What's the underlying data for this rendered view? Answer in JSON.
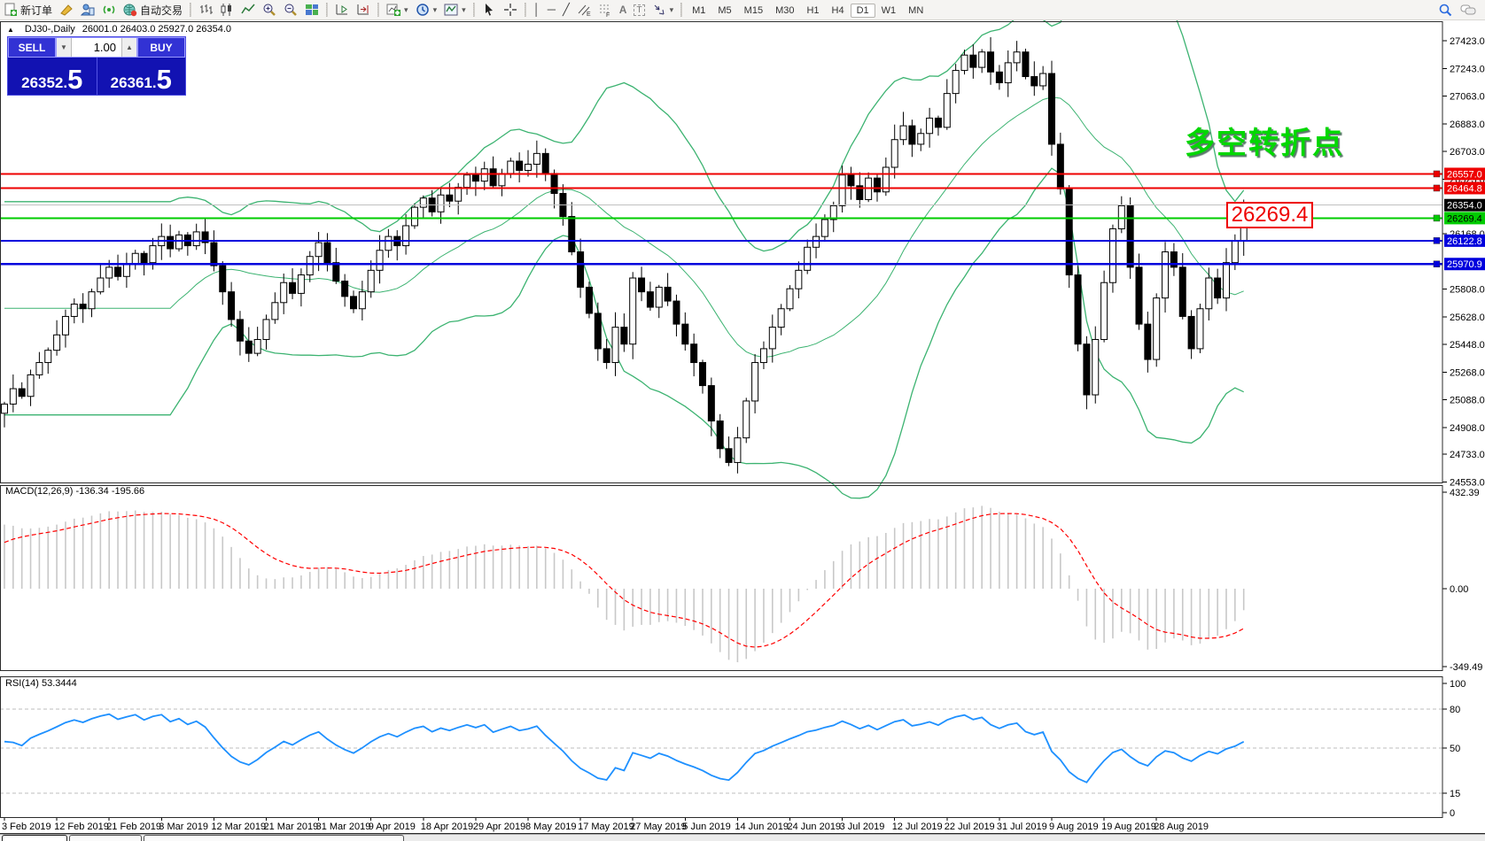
{
  "toolbar": {
    "new_order_label": "新订单",
    "autotrade_label": "自动交易",
    "timeframes": [
      "M1",
      "M5",
      "M15",
      "M30",
      "H1",
      "H4",
      "D1",
      "W1",
      "MN"
    ],
    "active_timeframe": "D1"
  },
  "chart_header": {
    "symbol_period": "DJ30-,Daily",
    "ohlc": "26001.0 26403.0 25927.0 26354.0"
  },
  "trade_panel": {
    "sell_label": "SELL",
    "buy_label": "BUY",
    "volume": "1.00",
    "sell_price_int": "26352",
    "sell_price_pip": "5",
    "buy_price_int": "26361",
    "buy_price_pip": "5"
  },
  "annotation": {
    "text": "多空转折点",
    "color": "#00d800"
  },
  "price_callout": {
    "text": "26269.4",
    "color": "#ee0000"
  },
  "main_pane": {
    "y_ticks": [
      "27423.0",
      "27243.0",
      "27063.0",
      "26883.0",
      "26703.0",
      "26523.0",
      "26168.0",
      "25808.0",
      "25628.0",
      "25448.0",
      "25268.0",
      "25088.0",
      "24908.0",
      "24733.0",
      "24553.0"
    ],
    "current_price": {
      "value": "26354.0",
      "line_color": "#c0c0c0",
      "label_bg": "#000000",
      "label_text": "#ffffff"
    },
    "levels": [
      {
        "value": "26557.0",
        "color": "#ee0000",
        "text_color": "#ffffff"
      },
      {
        "value": "26464.8",
        "color": "#ee0000",
        "text_color": "#ffffff"
      },
      {
        "value": "26269.4",
        "color": "#00cc00",
        "text_color": "#000000"
      },
      {
        "value": "26122.8",
        "color": "#0000dd",
        "text_color": "#ffffff"
      },
      {
        "value": "25970.9",
        "color": "#0000dd",
        "text_color": "#ffffff"
      }
    ]
  },
  "macd_pane": {
    "label": "MACD(12,26,9) -136.34 -195.66",
    "y_ticks": [
      "432.39",
      "0.00",
      "-349.49"
    ],
    "histogram_color": "#c8c8c8",
    "signal_color": "#ff0000"
  },
  "rsi_pane": {
    "label": "RSI(14) 53.3444",
    "y_ticks": [
      "100",
      "80",
      "50",
      "15",
      "0"
    ],
    "level_lines": [
      80,
      50,
      15
    ],
    "line_color": "#1e90ff"
  },
  "x_axis": {
    "labels": [
      "3 Feb 2019",
      "12 Feb 2019",
      "21 Feb 2019",
      "3 Mar 2019",
      "12 Mar 2019",
      "21 Mar 2019",
      "31 Mar 2019",
      "9 Apr 2019",
      "18 Apr 2019",
      "29 Apr 2019",
      "8 May 2019",
      "17 May 2019",
      "27 May 2019",
      "5 Jun 2019",
      "14 Jun 2019",
      "24 Jun 2019",
      "3 Jul 2019",
      "12 Jul 2019",
      "22 Jul 2019",
      "31 Jul 2019",
      "9 Aug 2019",
      "19 Aug 2019",
      "28 Aug 2019"
    ]
  },
  "chart_data": {
    "type": "candlestick",
    "symbol": "DJ30-,Daily",
    "visible_ohlc": {
      "open": 26001.0,
      "high": 26403.0,
      "low": 25927.0,
      "close": 26354.0
    },
    "y_range": [
      24553.0,
      27423.0
    ],
    "closes": [
      25060,
      25160,
      25110,
      25250,
      25330,
      25410,
      25510,
      25630,
      25710,
      25680,
      25790,
      25880,
      25950,
      25890,
      25970,
      26040,
      25980,
      26090,
      26150,
      26070,
      26160,
      26090,
      26180,
      26110,
      25960,
      25790,
      25610,
      25470,
      25390,
      25480,
      25610,
      25720,
      25850,
      25780,
      25900,
      26020,
      26110,
      25980,
      25860,
      25760,
      25680,
      25790,
      25930,
      26060,
      26150,
      26090,
      26220,
      26340,
      26400,
      26310,
      26420,
      26380,
      26470,
      26550,
      26510,
      26590,
      26480,
      26560,
      26640,
      26580,
      26620,
      26690,
      26560,
      26430,
      26280,
      26050,
      25820,
      25650,
      25420,
      25330,
      25560,
      25450,
      25880,
      25790,
      25690,
      25820,
      25730,
      25580,
      25450,
      25330,
      25180,
      24950,
      24770,
      24680,
      24840,
      25080,
      25330,
      25420,
      25560,
      25680,
      25810,
      25930,
      26080,
      26150,
      26260,
      26350,
      26550,
      26480,
      26390,
      26530,
      26440,
      26600,
      26780,
      26870,
      26750,
      26820,
      26920,
      26860,
      27080,
      27230,
      27330,
      27250,
      27350,
      27220,
      27150,
      27280,
      27350,
      27190,
      27130,
      27210,
      26750,
      26460,
      25900,
      25450,
      25120,
      25480,
      25850,
      26200,
      26350,
      25950,
      25580,
      25350,
      25750,
      26050,
      25950,
      25630,
      25420,
      25680,
      25880,
      25750,
      25980,
      26120,
      26354
    ],
    "indicators": [
      {
        "name": "Bollinger Bands",
        "color": "#3cb371"
      },
      {
        "name": "MACD(12,26,9)",
        "displayed_values": "-136.34 -195.66"
      },
      {
        "name": "RSI(14)",
        "displayed_value": 53.3444
      }
    ]
  }
}
